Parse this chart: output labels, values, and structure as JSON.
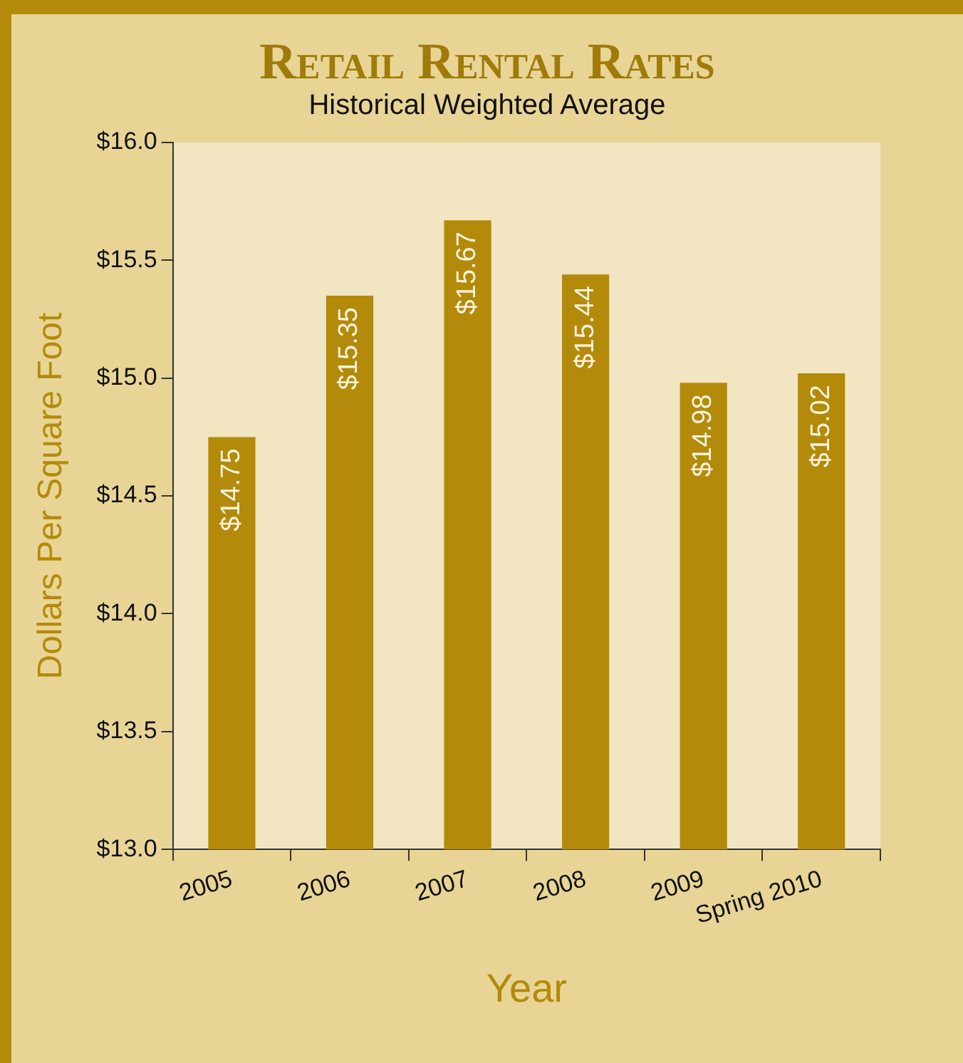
{
  "chart_data": {
    "type": "bar",
    "title": "Retail Rental Rates",
    "subtitle": "Historical Weighted Average",
    "xlabel": "Year",
    "ylabel": "Dollars Per Square Foot",
    "categories": [
      "2005",
      "2006",
      "2007",
      "2008",
      "2009",
      "Spring 2010"
    ],
    "values": [
      14.75,
      15.35,
      15.67,
      15.44,
      14.98,
      15.02
    ],
    "value_labels": [
      "$14.75",
      "$15.35",
      "$15.67",
      "$15.44",
      "$14.98",
      "$15.02"
    ],
    "color": "#b38a0a",
    "ylim": [
      13,
      16
    ],
    "yticks": [
      {
        "value": 13,
        "label": "$13.0"
      },
      {
        "value": 13.5,
        "label": "$13.5"
      },
      {
        "value": 14,
        "label": "$14.0"
      },
      {
        "value": 14.5,
        "label": "$14.5"
      },
      {
        "value": 15,
        "label": "$15.0"
      },
      {
        "value": 15.5,
        "label": "$15.5"
      },
      {
        "value": 16,
        "label": "$16.0"
      }
    ],
    "grid": false,
    "legend": false
  }
}
